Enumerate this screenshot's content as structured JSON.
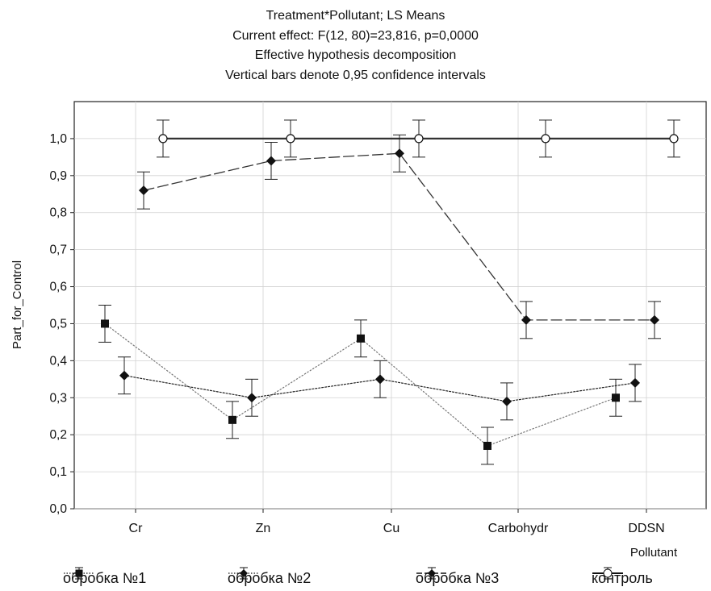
{
  "chart_data": {
    "type": "line",
    "title_lines": [
      "Treatment*Pollutant; LS Means",
      "Current effect: F(12, 80)=23,816, p=0,0000",
      "Effective hypothesis decomposition",
      "Vertical bars denote 0,95 confidence intervals"
    ],
    "xlabel": "Pollutant",
    "ylabel": "Part_for_Control",
    "categories": [
      "Cr",
      "Zn",
      "Cu",
      "Carbohydr",
      "DDSN"
    ],
    "yticks": [
      "0,0",
      "0,1",
      "0,2",
      "0,3",
      "0,4",
      "0,5",
      "0,6",
      "0,7",
      "0,8",
      "0,9",
      "1,0"
    ],
    "ylim": [
      0,
      1.1
    ],
    "grid": true,
    "legend_position": "bottom",
    "series": [
      {
        "name": "обробка №1",
        "marker": "square",
        "line_style": "dotted-light",
        "values": [
          0.5,
          0.24,
          0.46,
          0.17,
          0.3
        ],
        "ci_low": [
          0.45,
          0.19,
          0.41,
          0.12,
          0.25
        ],
        "ci_high": [
          0.55,
          0.29,
          0.51,
          0.22,
          0.35
        ]
      },
      {
        "name": "обробка №2",
        "marker": "diamond",
        "line_style": "dotted",
        "values": [
          0.36,
          0.3,
          0.35,
          0.29,
          0.34
        ],
        "ci_low": [
          0.31,
          0.25,
          0.3,
          0.24,
          0.29
        ],
        "ci_high": [
          0.41,
          0.35,
          0.4,
          0.34,
          0.39
        ]
      },
      {
        "name": "обробка №3",
        "marker": "diamond",
        "line_style": "dashed",
        "values": [
          0.86,
          0.94,
          0.96,
          0.51,
          0.51
        ],
        "ci_low": [
          0.81,
          0.89,
          0.91,
          0.46,
          0.46
        ],
        "ci_high": [
          0.91,
          0.99,
          1.01,
          0.56,
          0.56
        ]
      },
      {
        "name": "контроль",
        "marker": "open-circle",
        "line_style": "solid",
        "values": [
          1.0,
          1.0,
          1.0,
          1.0,
          1.0
        ],
        "ci_low": [
          0.95,
          0.95,
          0.95,
          0.95,
          0.95
        ],
        "ci_high": [
          1.05,
          1.05,
          1.05,
          1.05,
          1.05
        ]
      }
    ],
    "colors": {
      "axis": "#222222",
      "grid": "#d2d2d2",
      "line_dark": "#333333",
      "line_light": "#9a9a9a",
      "marker": "#111111",
      "open_marker_fill": "#ffffff"
    }
  }
}
